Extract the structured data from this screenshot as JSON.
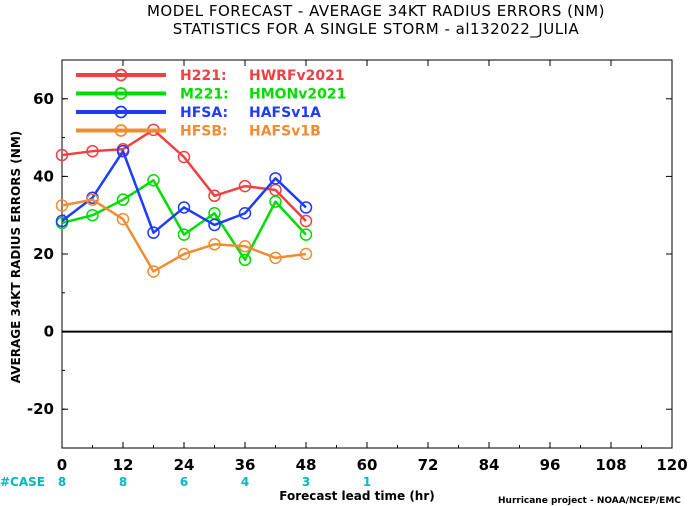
{
  "chart_data": {
    "type": "line",
    "title_line1": "MODEL FORECAST - AVERAGE 34KT RADIUS ERRORS (NM)",
    "title_line2": "STATISTICS FOR A SINGLE STORM - al132022_JULIA",
    "ylabel": "AVERAGE 34KT RADIUS ERRORS (NM)",
    "xlabel": "Forecast lead time (hr)",
    "credit": "Hurricane project - NOAA/NCEP/EMC",
    "xlim": [
      0,
      120
    ],
    "ylim": [
      -30,
      70
    ],
    "x_ticks": [
      "0",
      "12",
      "24",
      "36",
      "48",
      "60",
      "72",
      "84",
      "96",
      "108",
      "120"
    ],
    "y_ticks": [
      "-20",
      "0",
      "20",
      "40",
      "60"
    ],
    "case_label": "#CASE",
    "case_color": "#00b7c3",
    "cases": [
      {
        "x": 0,
        "n": "8"
      },
      {
        "x": 12,
        "n": "8"
      },
      {
        "x": 24,
        "n": "6"
      },
      {
        "x": 36,
        "n": "4"
      },
      {
        "x": 48,
        "n": "3"
      },
      {
        "x": 60,
        "n": "1"
      }
    ],
    "x": [
      0,
      6,
      12,
      18,
      24,
      30,
      36,
      42,
      48
    ],
    "series": [
      {
        "name": "H221:",
        "label": "HWRFv2021",
        "color": "#f04040",
        "values": [
          45.5,
          46.5,
          47.0,
          52.0,
          45.0,
          35.0,
          37.5,
          36.5,
          28.5
        ]
      },
      {
        "name": "M221:",
        "label": "HMONv2021",
        "color": "#00dc00",
        "values": [
          28.0,
          30.0,
          34.0,
          39.0,
          25.0,
          30.5,
          18.5,
          33.5,
          25.0
        ]
      },
      {
        "name": "HFSA:",
        "label": "HAFSv1A",
        "color": "#1e3cff",
        "values": [
          28.5,
          34.5,
          46.5,
          25.5,
          32.0,
          27.5,
          30.5,
          39.5,
          32.0
        ]
      },
      {
        "name": "HFSB:",
        "label": "HAFSv1B",
        "color": "#f08c32",
        "values": [
          32.5,
          34.0,
          29.0,
          15.5,
          20.0,
          22.5,
          22.0,
          19.0,
          20.0
        ]
      }
    ],
    "grid": false,
    "legend": "top-left"
  }
}
